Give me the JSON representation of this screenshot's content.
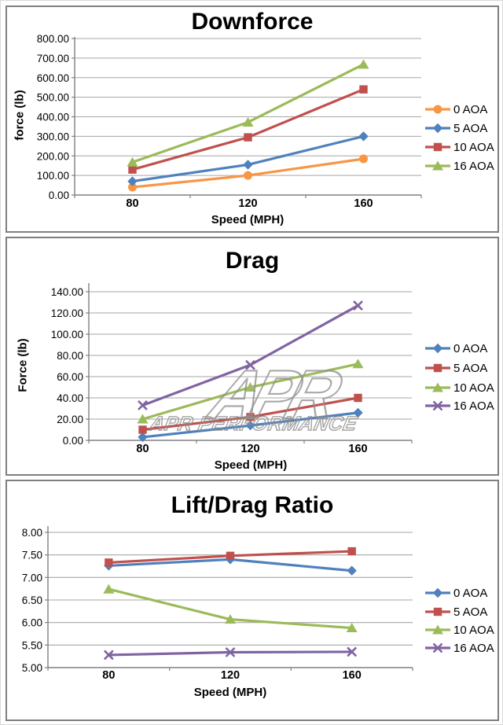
{
  "watermark": {
    "logo_text": "APR",
    "text": "APR PERFORMANCE"
  },
  "chart_data": [
    {
      "type": "line",
      "title": "Downforce",
      "xlabel": "Speed (MPH)",
      "ylabel": "force (lb)",
      "categories": [
        "80",
        "120",
        "160"
      ],
      "ylim": [
        0,
        800
      ],
      "ytick_step": 100,
      "ytick_decimals": 2,
      "grid": true,
      "legend_position": "right",
      "series": [
        {
          "name": "0 AOA",
          "color": "#F79646",
          "marker": "circle",
          "values": [
            40,
            100,
            185
          ]
        },
        {
          "name": "5 AOA",
          "color": "#4F81BD",
          "marker": "diamond",
          "values": [
            70,
            155,
            300
          ]
        },
        {
          "name": "10 AOA",
          "color": "#C0504D",
          "marker": "square",
          "values": [
            130,
            295,
            540
          ]
        },
        {
          "name": "16 AOA",
          "color": "#9BBB59",
          "marker": "triangle",
          "values": [
            168,
            372,
            668
          ]
        }
      ]
    },
    {
      "type": "line",
      "title": "Drag",
      "xlabel": "Speed (MPH)",
      "ylabel": "Force (lb)",
      "categories": [
        "80",
        "120",
        "160"
      ],
      "ylim": [
        0,
        140
      ],
      "ytick_step": 20,
      "ytick_decimals": 2,
      "grid": true,
      "legend_position": "right",
      "series": [
        {
          "name": "0 AOA",
          "color": "#4F81BD",
          "marker": "diamond",
          "values": [
            3,
            14,
            26
          ]
        },
        {
          "name": "5 AOA",
          "color": "#C0504D",
          "marker": "square",
          "values": [
            10,
            22,
            40
          ]
        },
        {
          "name": "10 AOA",
          "color": "#9BBB59",
          "marker": "triangle",
          "values": [
            20,
            50,
            72
          ]
        },
        {
          "name": "16 AOA",
          "color": "#8064A2",
          "marker": "x",
          "values": [
            33,
            71,
            127
          ]
        }
      ]
    },
    {
      "type": "line",
      "title": "Lift/Drag Ratio",
      "xlabel": "Speed (MPH)",
      "ylabel": "",
      "categories": [
        "80",
        "120",
        "160"
      ],
      "ylim": [
        5,
        8
      ],
      "ytick_step": 0.5,
      "ytick_decimals": 2,
      "grid": true,
      "legend_position": "right",
      "series": [
        {
          "name": "0 AOA",
          "color": "#4F81BD",
          "marker": "diamond",
          "values": [
            7.26,
            7.4,
            7.15
          ]
        },
        {
          "name": "5 AOA",
          "color": "#C0504D",
          "marker": "square",
          "values": [
            7.33,
            7.48,
            7.58
          ]
        },
        {
          "name": "10 AOA",
          "color": "#9BBB59",
          "marker": "triangle",
          "values": [
            6.74,
            6.07,
            5.88
          ]
        },
        {
          "name": "16 AOA",
          "color": "#8064A2",
          "marker": "x",
          "values": [
            5.28,
            5.34,
            5.35
          ]
        }
      ]
    }
  ],
  "colors": {
    "gridline": "#A6A6A6",
    "axis": "#808080",
    "text": "#000000",
    "watermark": "#8C8C8C"
  }
}
